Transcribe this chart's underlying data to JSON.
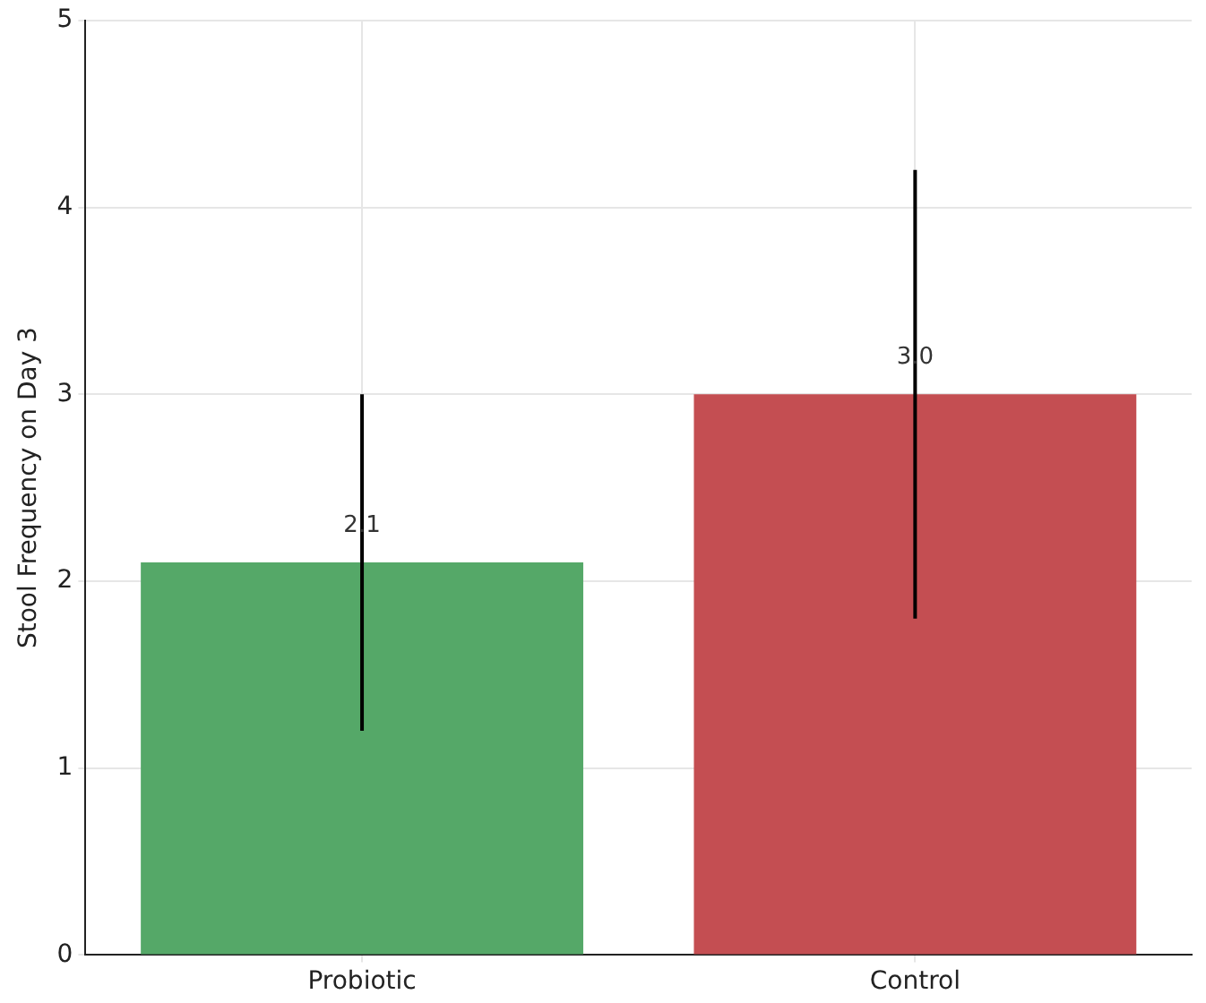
{
  "chart_data": {
    "type": "bar",
    "ylabel": "Stool Frequency on Day 3",
    "categories": [
      "Probiotic",
      "Control"
    ],
    "values": [
      2.1,
      3.0
    ],
    "colors": [
      "#55a868",
      "#c44e52"
    ],
    "errors": [
      0.9,
      1.2
    ],
    "value_labels": [
      "2.1",
      "3.0"
    ],
    "ylim": [
      0,
      5
    ],
    "yticks": [
      0,
      1,
      2,
      3,
      4,
      5
    ],
    "grid": true
  }
}
